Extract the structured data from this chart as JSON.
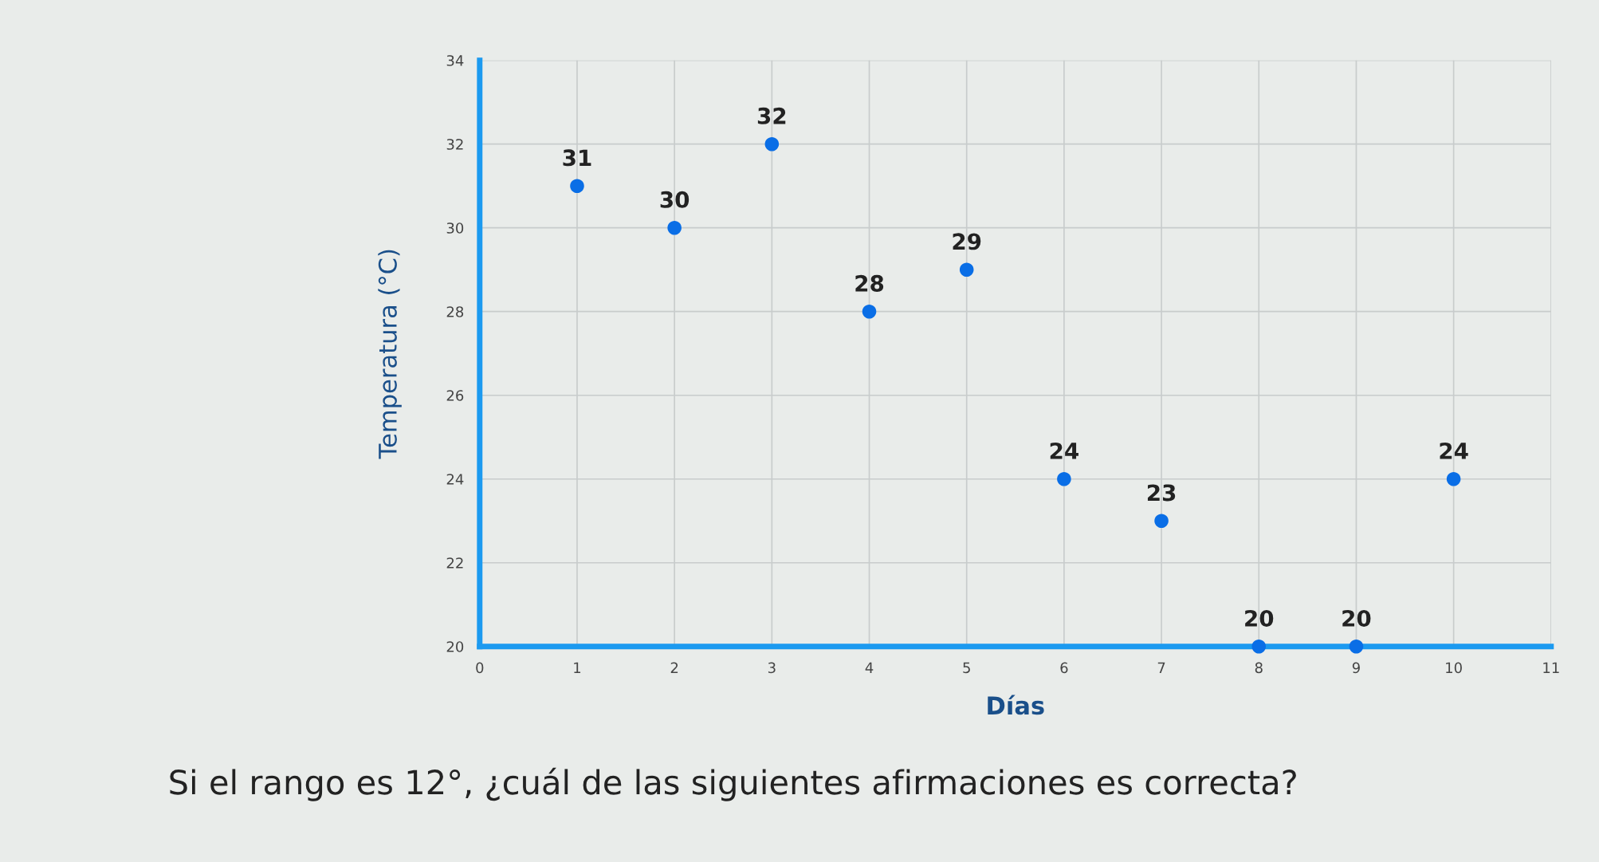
{
  "chart_data": {
    "type": "scatter",
    "xlabel": "Días",
    "ylabel": "Temperatura (°C)",
    "x": [
      1,
      2,
      3,
      4,
      5,
      6,
      7,
      8,
      9,
      10
    ],
    "series": [
      {
        "color": "#0a6ee6",
        "values": [
          31,
          30,
          32,
          28,
          29,
          24,
          23,
          20,
          20,
          24
        ]
      }
    ],
    "data_labels": true,
    "marker": "circle",
    "xlim": [
      0,
      11
    ],
    "xticks": [
      0,
      1,
      2,
      3,
      4,
      5,
      6,
      7,
      8,
      9,
      10,
      11
    ],
    "ylim": [
      20,
      34
    ],
    "yticks": [
      20,
      22,
      24,
      26,
      28,
      30,
      32,
      34
    ],
    "grid": true,
    "annotations": [
      "Si el rango es 12°, ¿cuál de las siguientes afirmaciones es correcta?"
    ]
  }
}
